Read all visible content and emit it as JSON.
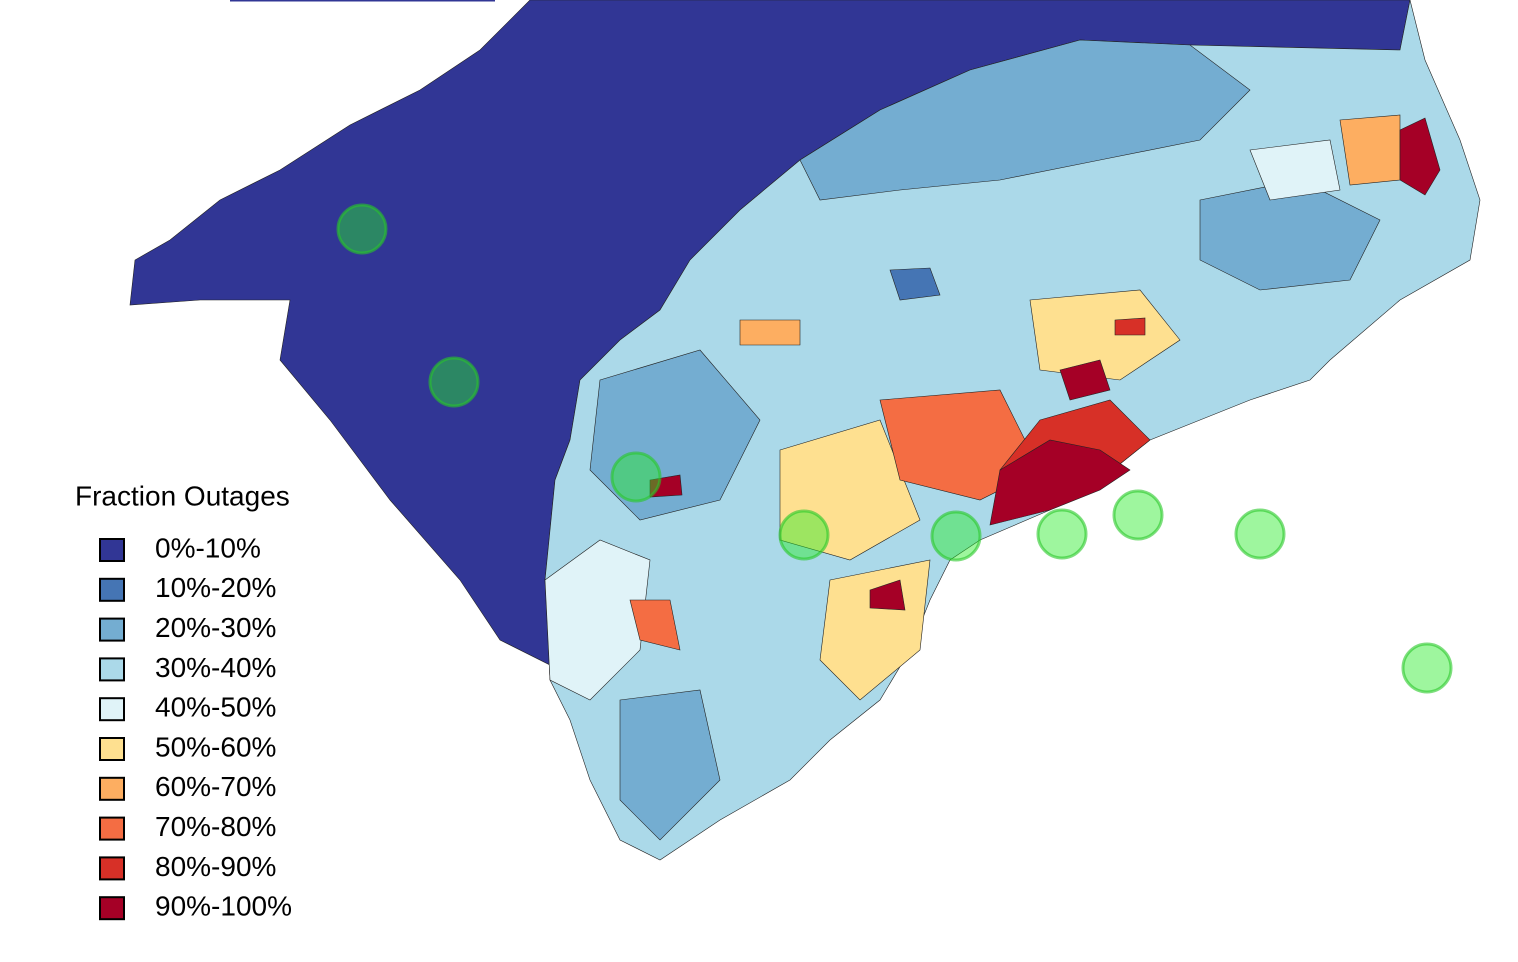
{
  "legend": {
    "title": "Fraction Outages",
    "entries": [
      {
        "label": "0%-10%",
        "color": "#313695"
      },
      {
        "label": "10%-20%",
        "color": "#4575b4"
      },
      {
        "label": "20%-30%",
        "color": "#74add1"
      },
      {
        "label": "30%-40%",
        "color": "#abd9e9"
      },
      {
        "label": "40%-50%",
        "color": "#e0f3f8"
      },
      {
        "label": "50%-60%",
        "color": "#fee090"
      },
      {
        "label": "60%-70%",
        "color": "#fdae61"
      },
      {
        "label": "70%-80%",
        "color": "#f46d43"
      },
      {
        "label": "80%-90%",
        "color": "#d73027"
      },
      {
        "label": "90%-100%",
        "color": "#a50026"
      }
    ]
  }
}
